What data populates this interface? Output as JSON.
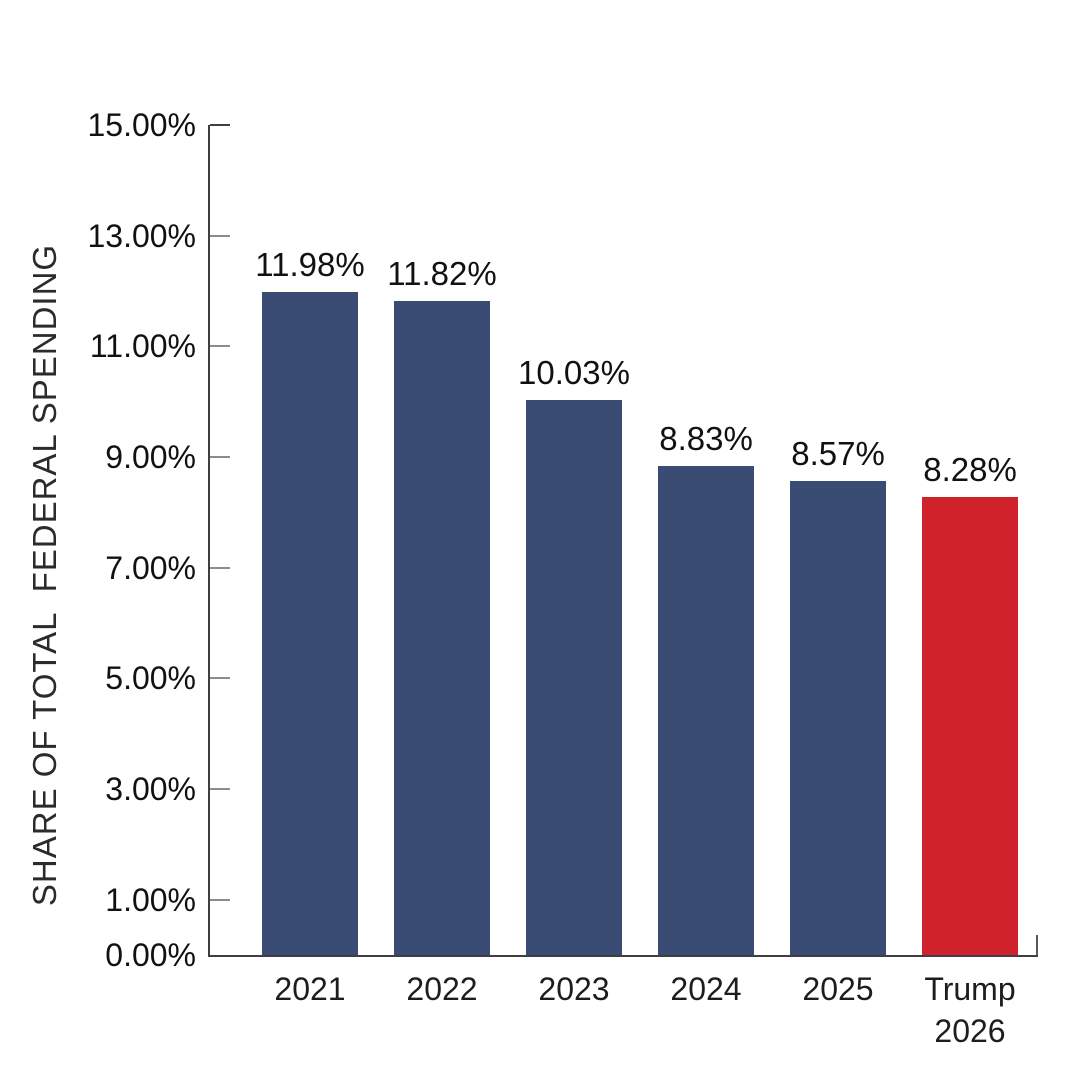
{
  "chart_data": {
    "type": "bar",
    "title": "",
    "xlabel": "",
    "ylabel": "SHARE OF TOTAL  FEDERAL SPENDING",
    "categories": [
      "2021",
      "2022",
      "2023",
      "2024",
      "2025",
      "Trump\n2026"
    ],
    "values": [
      11.98,
      11.82,
      10.03,
      8.83,
      8.57,
      8.28
    ],
    "value_labels": [
      "11.98%",
      "11.82%",
      "10.03%",
      "8.83%",
      "8.57%",
      "8.28%"
    ],
    "bar_colors": [
      "#3a4c73",
      "#3a4c73",
      "#3a4c73",
      "#3a4c73",
      "#3a4c73",
      "#d0222a"
    ],
    "ylim": [
      0,
      15
    ],
    "yticks": [
      {
        "value": 0,
        "label": "0.00%"
      },
      {
        "value": 1,
        "label": "1.00%"
      },
      {
        "value": 3,
        "label": "3.00%"
      },
      {
        "value": 5,
        "label": "5.00%"
      },
      {
        "value": 7,
        "label": "7.00%"
      },
      {
        "value": 9,
        "label": "9.00%"
      },
      {
        "value": 11,
        "label": "11.00%"
      },
      {
        "value": 13,
        "label": "13.00%"
      },
      {
        "value": 15,
        "label": "15.00%"
      }
    ],
    "grid": false,
    "legend": "none",
    "colors": {
      "bar_default": "#3a4c73",
      "bar_highlight": "#d0222a",
      "axis": "#3f3f3f",
      "tick": "#8c8c8c",
      "text": "#111111",
      "background": "#ffffff"
    }
  }
}
